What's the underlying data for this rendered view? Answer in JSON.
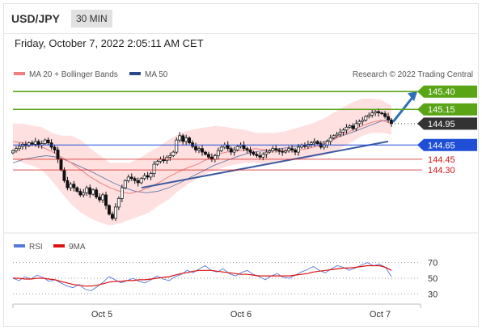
{
  "header": {
    "symbol": "USD/JPY",
    "timeframe": "30 MIN"
  },
  "datetime": "Friday, October 7, 2022 2:05:11 AM CET",
  "credit": "Research © 2022 Trading Central",
  "colors": {
    "up_candle": "#ffffff",
    "down_candle": "#111111",
    "bollinger_fill": "#ffd6d6",
    "ma20": "#f08080",
    "ma50": "#2c4a8a",
    "trend": "#3b5aa0",
    "arrow": "#2f6fb8",
    "resistance": "#5aa516",
    "pivot": "#1f4fd6",
    "support": "#d01818",
    "current": "#333333",
    "rsi": "#5577dd",
    "rsi_ma": "#dd1111"
  },
  "chart_data": [
    {
      "type": "candlestick",
      "title": "",
      "legend": [
        "MA 20 + Bollinger Bands",
        "MA 50"
      ],
      "legend_placement": "top-left",
      "x_ticks": [
        "Oct 5",
        "Oct 6",
        "Oct 7"
      ],
      "y_range": [
        143.45,
        145.55
      ],
      "grid": false,
      "series": [
        {
          "name": "USD/JPY",
          "close": [
            144.57,
            144.6,
            144.63,
            144.66,
            144.64,
            144.68,
            144.66,
            144.7,
            144.65,
            144.67,
            144.72,
            144.68,
            144.62,
            144.58,
            144.45,
            144.3,
            144.15,
            144.05,
            144.1,
            144.05,
            144.0,
            143.95,
            143.98,
            144.05,
            143.96,
            144.02,
            143.92,
            143.88,
            143.95,
            143.8,
            143.68,
            143.62,
            143.78,
            143.9,
            144.05,
            144.15,
            144.2,
            144.18,
            144.15,
            144.12,
            144.18,
            144.22,
            144.2,
            144.25,
            144.38,
            144.42,
            144.45,
            144.43,
            144.48,
            144.5,
            144.55,
            144.72,
            144.78,
            144.7,
            144.75,
            144.68,
            144.63,
            144.58,
            144.6,
            144.55,
            144.52,
            144.48,
            144.45,
            144.5,
            144.57,
            144.62,
            144.65,
            144.6,
            144.55,
            144.58,
            144.63,
            144.65,
            144.6,
            144.58,
            144.55,
            144.52,
            144.5,
            144.48,
            144.52,
            144.55,
            144.57,
            144.6,
            144.58,
            144.56,
            144.55,
            144.57,
            144.6,
            144.58,
            144.55,
            144.62,
            144.65,
            144.63,
            144.66,
            144.68,
            144.7,
            144.67,
            144.62,
            144.65,
            144.7,
            144.75,
            144.78,
            144.8,
            144.83,
            144.86,
            144.9,
            144.92,
            144.88,
            144.95,
            144.98,
            145.0,
            145.05,
            145.07,
            145.1,
            145.12,
            145.1,
            145.09,
            145.05,
            145.0,
            144.95
          ]
        }
      ],
      "ma20": [
        144.7,
        144.68,
        144.66,
        144.62,
        144.56,
        144.48,
        144.4,
        144.3,
        144.2,
        144.12,
        144.05,
        144.0,
        143.97,
        144.0,
        144.05,
        144.12,
        144.2,
        144.27,
        144.33,
        144.38,
        144.45,
        144.52,
        144.55,
        144.57,
        144.58,
        144.6,
        144.58,
        144.57,
        144.58,
        144.58,
        144.59,
        144.62,
        144.66,
        144.72,
        144.8,
        144.86,
        144.92,
        144.97,
        145.0,
        144.95
      ],
      "bollinger_upper": [
        144.95,
        144.95,
        144.92,
        144.9,
        144.82,
        144.78,
        144.78,
        144.72,
        144.6,
        144.5,
        144.4,
        144.4,
        144.4,
        144.46,
        144.55,
        144.62,
        144.72,
        144.8,
        144.85,
        144.88,
        144.9,
        144.92,
        144.9,
        144.88,
        144.86,
        144.82,
        144.82,
        144.82,
        144.84,
        144.88,
        144.92,
        144.96,
        145.02,
        145.1,
        145.18,
        145.25,
        145.3,
        145.3,
        145.28,
        145.2
      ],
      "bollinger_lower": [
        144.45,
        144.4,
        144.36,
        144.3,
        144.15,
        143.98,
        143.82,
        143.7,
        143.62,
        143.56,
        143.52,
        143.55,
        143.6,
        143.65,
        143.7,
        143.8,
        143.88,
        144.0,
        144.1,
        144.18,
        144.25,
        144.3,
        144.35,
        144.38,
        144.4,
        144.4,
        144.38,
        144.4,
        144.42,
        144.45,
        144.45,
        144.48,
        144.5,
        144.55,
        144.62,
        144.7,
        144.78,
        144.82,
        144.82,
        144.8
      ],
      "ma50": [
        144.4,
        144.45,
        144.48,
        144.5,
        144.48,
        144.42,
        144.35,
        144.28,
        144.2,
        144.12,
        144.05,
        144.0,
        143.98,
        144.0,
        144.05,
        144.12,
        144.2,
        144.28,
        144.36,
        144.42,
        144.48,
        144.53,
        144.56,
        144.58,
        144.6,
        144.62,
        144.64,
        144.66,
        144.7,
        144.75,
        144.8,
        144.86,
        144.92,
        144.98,
        145.02
      ],
      "trend_line": {
        "from": 144.05,
        "to": 144.7
      },
      "arrow_target": 145.4,
      "levels": [
        {
          "value": 145.4,
          "label": "145.40",
          "kind": "resistance"
        },
        {
          "value": 145.15,
          "label": "145.15",
          "kind": "resistance"
        },
        {
          "value": 144.95,
          "label": "144.95",
          "kind": "current"
        },
        {
          "value": 144.65,
          "label": "144.65",
          "kind": "pivot"
        },
        {
          "value": 144.45,
          "label": "144.45",
          "kind": "support"
        },
        {
          "value": 144.3,
          "label": "144.30",
          "kind": "support"
        }
      ]
    },
    {
      "type": "line",
      "title": "",
      "legend": [
        "RSI",
        "9MA"
      ],
      "legend_placement": "top-left",
      "y_range": [
        20,
        80
      ],
      "y_ticks": [
        70,
        50,
        30
      ],
      "series": [
        {
          "name": "RSI",
          "values": [
            50,
            47,
            52,
            49,
            54,
            51,
            46,
            48,
            44,
            40,
            38,
            42,
            36,
            34,
            39,
            45,
            52,
            48,
            44,
            47,
            50,
            46,
            44,
            48,
            53,
            49,
            47,
            52,
            55,
            60,
            57,
            62,
            66,
            60,
            58,
            62,
            56,
            53,
            57,
            60,
            55,
            52,
            48,
            53,
            56,
            51,
            50,
            54,
            58,
            61,
            65,
            60,
            57,
            62,
            66,
            64,
            60,
            63,
            67,
            70,
            66,
            68,
            64,
            52
          ]
        },
        {
          "name": "9MA",
          "values": [
            50,
            50,
            49,
            49,
            50,
            50,
            49,
            48,
            46,
            44,
            42,
            41,
            40,
            40,
            41,
            43,
            45,
            46,
            46,
            47,
            47,
            48,
            48,
            49,
            50,
            51,
            52,
            54,
            56,
            57,
            59,
            60,
            60,
            60,
            59,
            58,
            57,
            56,
            55,
            55,
            54,
            53,
            53,
            53,
            53,
            53,
            53,
            54,
            55,
            56,
            58,
            59,
            60,
            61,
            62,
            63,
            63,
            64,
            65,
            66,
            66,
            66,
            64,
            60
          ]
        }
      ]
    }
  ]
}
